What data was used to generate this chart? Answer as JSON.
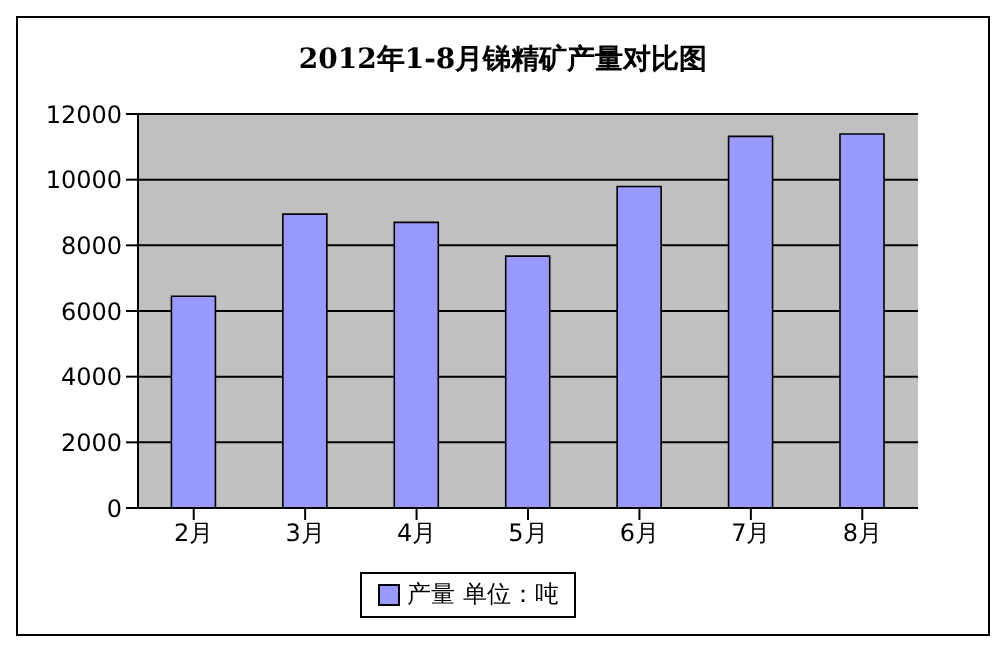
{
  "chart_data": {
    "type": "bar",
    "title": "2012年1-8月锑精矿产量对比图",
    "categories": [
      "2月",
      "3月",
      "4月",
      "5月",
      "6月",
      "7月",
      "8月"
    ],
    "series": [
      {
        "name": "产量 单位：吨",
        "color": "#9999ff",
        "values": [
          6450,
          8950,
          8700,
          7670,
          9790,
          11320,
          11390
        ]
      }
    ],
    "ylim": [
      0,
      12000
    ],
    "yticks": [
      0,
      2000,
      4000,
      6000,
      8000,
      10000,
      12000
    ],
    "grid": "y",
    "legend": "bottom"
  }
}
